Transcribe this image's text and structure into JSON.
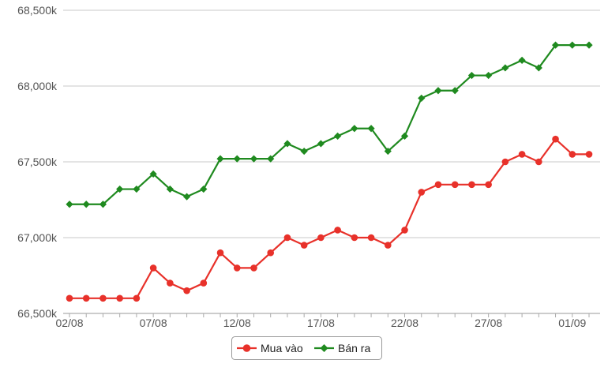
{
  "chart_data": {
    "type": "line",
    "title": "",
    "xlabel": "",
    "ylabel": "",
    "categories": [
      "02/08",
      "03/08",
      "04/08",
      "05/08",
      "06/08",
      "07/08",
      "08/08",
      "09/08",
      "10/08",
      "11/08",
      "12/08",
      "13/08",
      "14/08",
      "15/08",
      "16/08",
      "17/08",
      "18/08",
      "19/08",
      "20/08",
      "21/08",
      "22/08",
      "23/08",
      "24/08",
      "25/08",
      "26/08",
      "27/08",
      "28/08",
      "29/08",
      "30/08",
      "31/08",
      "01/09",
      "02/09"
    ],
    "x_tick_labels": [
      "02/08",
      "07/08",
      "12/08",
      "17/08",
      "22/08",
      "27/08",
      "01/09"
    ],
    "ylim": [
      66500,
      68500
    ],
    "y_ticks": [
      66500,
      67000,
      67500,
      68000,
      68500
    ],
    "y_tick_labels": [
      "66,500k",
      "67,000k",
      "67,500k",
      "68,000k",
      "68,500k"
    ],
    "grid": true,
    "legend_position": "bottom-center",
    "series": [
      {
        "name": "Mua vào",
        "color": "#e8312a",
        "marker": "circle",
        "values": [
          66600,
          66600,
          66600,
          66600,
          66600,
          66800,
          66700,
          66650,
          66700,
          66900,
          66800,
          66800,
          66900,
          67000,
          66950,
          67000,
          67050,
          67000,
          67000,
          66950,
          67050,
          67300,
          67350,
          67350,
          67350,
          67350,
          67500,
          67550,
          67500,
          67650,
          67550,
          67550
        ]
      },
      {
        "name": "Bán ra",
        "color": "#1f8a1f",
        "marker": "diamond",
        "values": [
          67220,
          67220,
          67220,
          67320,
          67320,
          67420,
          67320,
          67270,
          67320,
          67520,
          67520,
          67520,
          67520,
          67620,
          67570,
          67620,
          67670,
          67720,
          67720,
          67570,
          67670,
          67920,
          67970,
          67970,
          68070,
          68070,
          68120,
          68170,
          68120,
          68270,
          68270,
          68270
        ]
      }
    ]
  }
}
